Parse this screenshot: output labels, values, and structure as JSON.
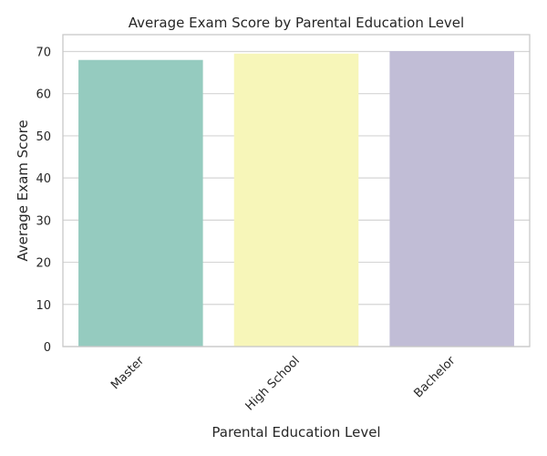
{
  "chart_data": {
    "type": "bar",
    "title": "Average Exam Score by Parental Education Level",
    "xlabel": "Parental Education Level",
    "ylabel": "Average Exam Score",
    "categories": [
      "Master",
      "High School",
      "Bachelor"
    ],
    "values": [
      68.0,
      69.5,
      70.1
    ],
    "colors": [
      "#95cbbf",
      "#f7f6b9",
      "#c1bdd6"
    ],
    "ylim": [
      0,
      74
    ],
    "yticks": [
      0,
      10,
      20,
      30,
      40,
      50,
      60,
      70
    ],
    "grid": true
  }
}
